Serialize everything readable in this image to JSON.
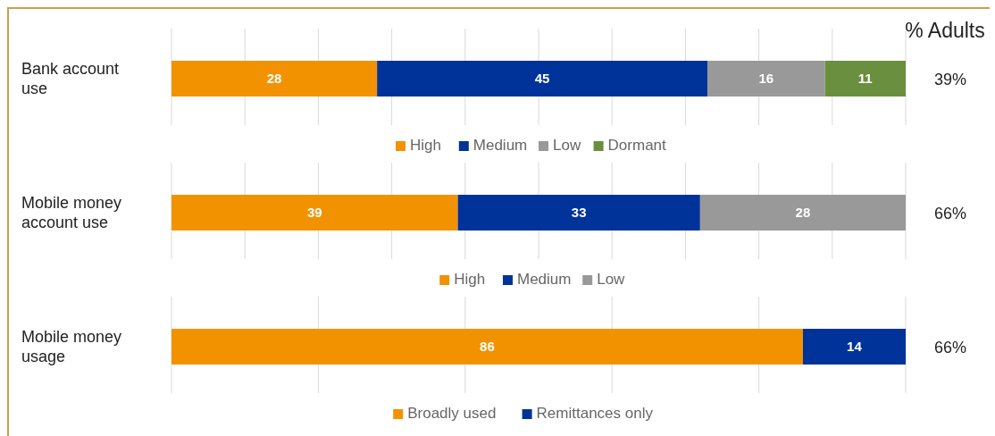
{
  "chart_data": [
    {
      "type": "bar",
      "orientation": "horizontal",
      "stacked": true,
      "categories": [
        "Bank account use"
      ],
      "series": [
        {
          "name": "High",
          "color": "#f39200",
          "values": [
            28
          ]
        },
        {
          "name": "Medium",
          "color": "#003399",
          "values": [
            45
          ]
        },
        {
          "name": "Low",
          "color": "#999999",
          "values": [
            16
          ]
        },
        {
          "name": "Dormant",
          "color": "#6a8f3f",
          "values": [
            11
          ]
        }
      ],
      "xlim": [
        0,
        100
      ],
      "xticks": [
        {
          "value": 0,
          "label": null
        },
        {
          "value": 10,
          "label": null
        },
        {
          "value": 20,
          "label": null
        },
        {
          "value": 30,
          "label": null
        },
        {
          "value": 40,
          "label": null
        },
        {
          "value": 50,
          "label": null
        },
        {
          "value": 60,
          "label": null
        },
        {
          "value": 70,
          "label": null
        },
        {
          "value": 80,
          "label": null
        },
        {
          "value": 90,
          "label": null
        },
        {
          "value": 100,
          "label": null
        }
      ],
      "grid": "x",
      "tick_labels": "y",
      "data_labels": true,
      "legend": "bottom",
      "annotations": [
        "% Adults",
        "39%"
      ]
    },
    {
      "type": "bar",
      "orientation": "horizontal",
      "stacked": true,
      "categories": [
        "Mobile money account use"
      ],
      "series": [
        {
          "name": "High",
          "color": "#f39200",
          "values": [
            39
          ]
        },
        {
          "name": "Medium",
          "color": "#003399",
          "values": [
            33
          ]
        },
        {
          "name": "Low",
          "color": "#999999",
          "values": [
            28
          ]
        }
      ],
      "xlim": [
        0,
        100
      ],
      "xticks": [
        {
          "value": 0,
          "label": null
        },
        {
          "value": 10,
          "label": null
        },
        {
          "value": 20,
          "label": null
        },
        {
          "value": 30,
          "label": null
        },
        {
          "value": 40,
          "label": null
        },
        {
          "value": 50,
          "label": null
        },
        {
          "value": 60,
          "label": null
        },
        {
          "value": 70,
          "label": null
        },
        {
          "value": 80,
          "label": null
        },
        {
          "value": 90,
          "label": null
        },
        {
          "value": 100,
          "label": null
        }
      ],
      "grid": "x",
      "tick_labels": "y",
      "data_labels": true,
      "legend": "bottom",
      "annotations": [
        "66%"
      ]
    },
    {
      "type": "bar",
      "orientation": "horizontal",
      "stacked": true,
      "categories": [
        "Mobile money usage"
      ],
      "series": [
        {
          "name": "Broadly used",
          "color": "#f39200",
          "values": [
            86
          ]
        },
        {
          "name": "Remittances only",
          "color": "#003399",
          "values": [
            14
          ]
        }
      ],
      "xlim": [
        0,
        100
      ],
      "xticks": [
        {
          "value": 0,
          "label": null
        },
        {
          "value": 20,
          "label": null
        },
        {
          "value": 40,
          "label": null
        },
        {
          "value": 60,
          "label": null
        },
        {
          "value": 80,
          "label": null
        },
        {
          "value": 100,
          "label": null
        }
      ],
      "grid": "x",
      "tick_labels": "y",
      "data_labels": true,
      "legend": "bottom",
      "annotations": [
        "66%"
      ]
    }
  ]
}
